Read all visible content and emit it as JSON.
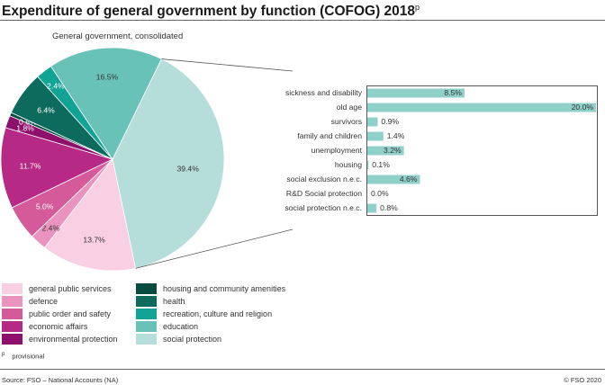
{
  "title": "Expenditure of general government by function (COFOG) 2018",
  "title_superscript": "p",
  "subtitle": "General government, consolidated",
  "footnote": {
    "marker": "p",
    "text": "provisional"
  },
  "source": "Source: FSO – National Accounts (NA)",
  "copyright": "© FSO 2020",
  "chart_data": [
    {
      "type": "pie",
      "title": "General government, consolidated",
      "slices": [
        {
          "label": "social protection",
          "value": 39.4,
          "display": "39.4%",
          "color": "#b5dedb"
        },
        {
          "label": "general public services",
          "value": 13.7,
          "display": "13.7%",
          "color": "#f9cfe3"
        },
        {
          "label": "defence",
          "value": 2.4,
          "display": "2.4%",
          "color": "#eb93bf"
        },
        {
          "label": "public order and safety",
          "value": 5.0,
          "display": "5.0%",
          "color": "#d55a99"
        },
        {
          "label": "economic affairs",
          "value": 11.7,
          "display": "11.7%",
          "color": "#b62a86"
        },
        {
          "label": "environmental protection",
          "value": 1.8,
          "display": "1.8%",
          "color": "#8e0f6c"
        },
        {
          "label": "housing and community amenities",
          "value": 0.5,
          "display": "0.5%",
          "color": "#074a3f"
        },
        {
          "label": "health",
          "value": 6.4,
          "display": "6.4%",
          "color": "#0c6b5d"
        },
        {
          "label": "recreation, culture and religion",
          "value": 2.4,
          "display": "2.4%",
          "color": "#11a394"
        },
        {
          "label": "education",
          "value": 16.5,
          "display": "16.5%",
          "color": "#69c2b8"
        }
      ],
      "legend_position": "bottom"
    },
    {
      "type": "bar",
      "orientation": "horizontal",
      "breakdown_of": "social protection",
      "color": "#8fd0c8",
      "categories": [
        "sickness and disability",
        "old age",
        "survivors",
        "family and children",
        "unemployment",
        "housing",
        "social exclusion n.e.c.",
        "R&D Social protection",
        "social protection n.e.c."
      ],
      "values": [
        8.5,
        20.0,
        0.9,
        1.4,
        3.2,
        0.1,
        4.6,
        0.0,
        0.8
      ],
      "value_labels": [
        "8.5%",
        "20.0%",
        "0.9%",
        "1.4%",
        "3.2%",
        "0.1%",
        "4.6%",
        "0.0%",
        "0.8%"
      ],
      "xlim": [
        0,
        20.0
      ]
    }
  ]
}
